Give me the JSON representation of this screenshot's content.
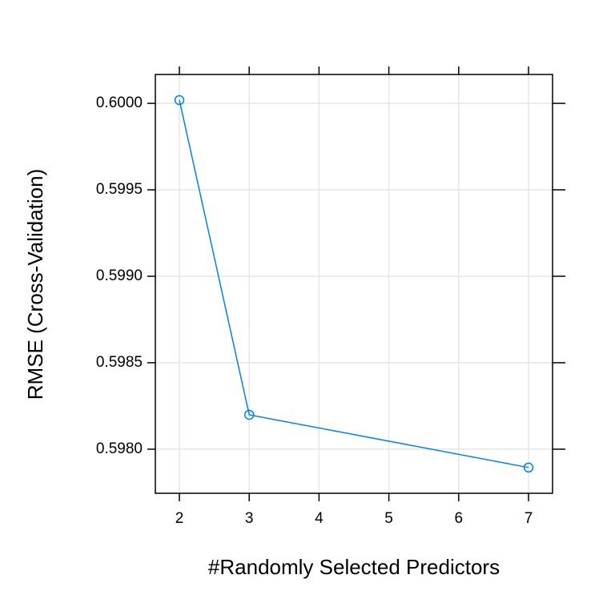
{
  "chart_data": {
    "type": "line",
    "xlabel": "#Randomly Selected Predictors",
    "ylabel": "RMSE (Cross-Validation)",
    "x": [
      2,
      3,
      7
    ],
    "series": [
      {
        "color": "#0080ff",
        "values": [
          0.600019,
          0.598199,
          0.597894
        ]
      }
    ],
    "xlim": [
      1.656,
      7.344
    ],
    "ylim": [
      0.597745,
      0.600167
    ],
    "xticks": [
      2,
      3,
      4,
      5,
      6,
      7
    ],
    "yticks": [
      {
        "value": 0.598,
        "label": "0.5980"
      },
      {
        "value": 0.5985,
        "label": "0.5985"
      },
      {
        "value": 0.599,
        "label": "0.5990"
      },
      {
        "value": 0.5995,
        "label": "0.5995"
      },
      {
        "value": 0.6,
        "label": "0.6000"
      }
    ],
    "grid": true
  }
}
